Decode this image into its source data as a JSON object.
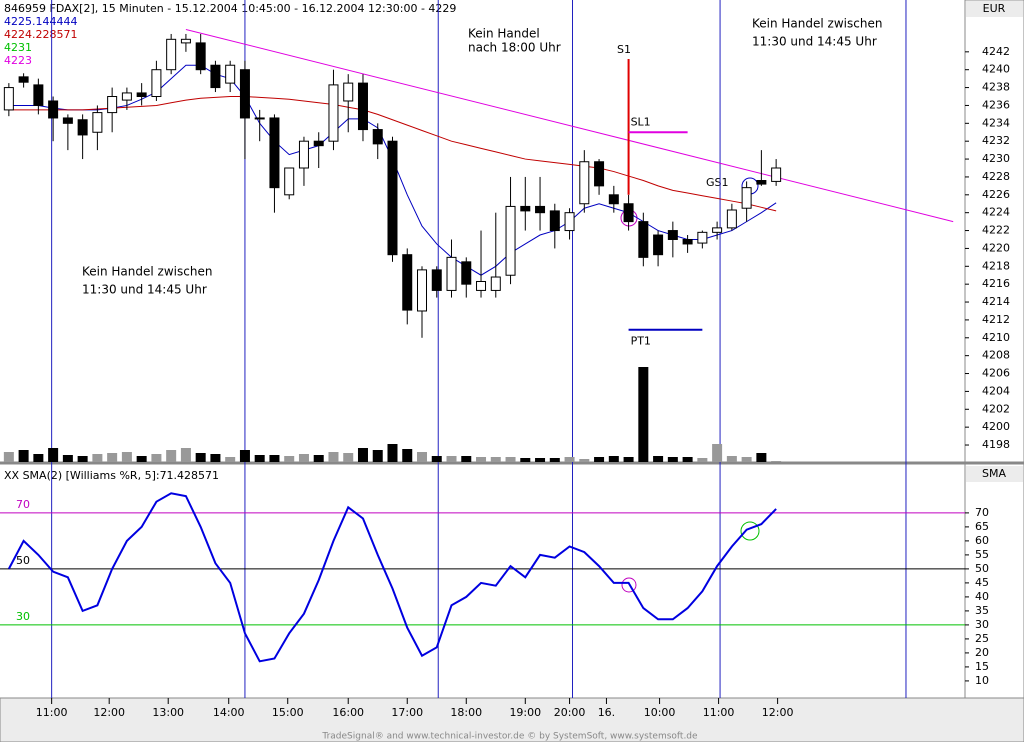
{
  "chart_data": [
    {
      "type": "candlestick",
      "title": "846959 FDAX[2], 15 Minuten - 15.12.2004 10:45:00 - 16.12.2004 12:30:00 - 4229",
      "axis_label": "EUR",
      "readouts": [
        {
          "value": 4225.144444,
          "color": "#0000c0"
        },
        {
          "value": 4224.228571,
          "color": "#c00000"
        },
        {
          "value": 4231,
          "color": "#00c000"
        },
        {
          "value": 4223,
          "color": "#e000e0"
        }
      ],
      "xlim": [
        -0.6,
        64.8
      ],
      "ylim": [
        4196.1,
        4247.8
      ],
      "yticks": [
        4198,
        4200,
        4202,
        4204,
        4206,
        4208,
        4210,
        4212,
        4214,
        4216,
        4218,
        4220,
        4222,
        4224,
        4226,
        4228,
        4230,
        4232,
        4234,
        4236,
        4238,
        4240,
        4242
      ],
      "open": [
        4235.5,
        4239.2,
        4238.3,
        4236.5,
        4234.6,
        4234.4,
        4233,
        4235.2,
        4236.6,
        4237.4,
        4237,
        4240,
        4243,
        4243,
        4240.5,
        4238.5,
        4240,
        4234.6,
        4234.6,
        4226,
        4229,
        4232,
        4232,
        4236.5,
        4238.5,
        4233.3,
        4232,
        4219.3,
        4213,
        4217.6,
        4215.3,
        4218.5,
        4215.3,
        4215.3,
        4217,
        4224.7,
        4224.7,
        4224.2,
        4222,
        4225,
        4229.7,
        4226,
        4225,
        4223,
        4221.5,
        4222,
        4221,
        4220.6,
        4221.8,
        4222.3,
        4224.5,
        4227.6,
        4227.5
      ],
      "high": [
        4238.5,
        4239.6,
        4239,
        4237,
        4235,
        4235,
        4236,
        4238,
        4238,
        4238.5,
        4241,
        4244,
        4244,
        4244,
        4241,
        4241,
        4241,
        4235.5,
        4235,
        4229,
        4232.5,
        4233,
        4240,
        4239.5,
        4239.5,
        4234,
        4232.5,
        4220,
        4218,
        4218,
        4221,
        4219,
        4222,
        4224,
        4228,
        4228,
        4228,
        4225,
        4224.5,
        4231,
        4230,
        4227,
        4226,
        4224,
        4222,
        4223,
        4221.5,
        4222,
        4223,
        4225,
        4227.5,
        4231,
        4230
      ],
      "low": [
        4234.8,
        4238,
        4235,
        4232,
        4231,
        4230,
        4231,
        4233,
        4235.5,
        4236,
        4236.5,
        4239.5,
        4242,
        4239.5,
        4237.5,
        4237.5,
        4230,
        4232,
        4224,
        4225.5,
        4227,
        4229,
        4231,
        4233,
        4232,
        4230,
        4218.5,
        4211.5,
        4210,
        4214.5,
        4214.5,
        4214.5,
        4214.5,
        4214.5,
        4216,
        4222,
        4222,
        4220,
        4221,
        4224,
        4226,
        4224,
        4222,
        4218,
        4218,
        4219,
        4219.5,
        4220,
        4221,
        4222,
        4223,
        4227,
        4227
      ],
      "close": [
        4238,
        4238.6,
        4236,
        4234.6,
        4234,
        4232.7,
        4235.2,
        4237,
        4237.4,
        4237,
        4240,
        4243.4,
        4243.4,
        4240,
        4238,
        4240.5,
        4234.6,
        4234.5,
        4226.8,
        4229,
        4232,
        4231.5,
        4238.3,
        4238.5,
        4233.3,
        4231.7,
        4219.3,
        4213.1,
        4217.6,
        4215.3,
        4219,
        4216,
        4216.3,
        4216.8,
        4224.7,
        4224.2,
        4224,
        4222,
        4224,
        4229.7,
        4227,
        4225,
        4223,
        4219,
        4219.3,
        4221,
        4220.5,
        4221.8,
        4222.3,
        4224.3,
        4226.8,
        4227.2,
        4229
      ],
      "volume": [
        10,
        12,
        8,
        14,
        7,
        6,
        8,
        9,
        10,
        6,
        8,
        12,
        14,
        9,
        8,
        5,
        12,
        7,
        7,
        6,
        8,
        7,
        10,
        9,
        14,
        12,
        18,
        13,
        10,
        6,
        6,
        6,
        5,
        5,
        5,
        4,
        4,
        4,
        5,
        3,
        5,
        6,
        5,
        95,
        6,
        5,
        5,
        4,
        18,
        6,
        5,
        9,
        1
      ],
      "series": [
        {
          "color": "#0000c0",
          "values": [
            4236,
            4236,
            4236,
            4235.7,
            4235.5,
            4235.5,
            4235.5,
            4235.7,
            4236,
            4236.7,
            4237.5,
            4239,
            4240.5,
            4240.5,
            4239.5,
            4239,
            4237,
            4234,
            4232,
            4230.5,
            4231,
            4231.5,
            4233,
            4234.5,
            4234.5,
            4233.5,
            4230,
            4226,
            4222.5,
            4220.5,
            4219,
            4218,
            4217,
            4218,
            4219.5,
            4220.5,
            4221.5,
            4222,
            4223,
            4224.5,
            4225,
            4224.5,
            4224,
            4223,
            4222,
            4221.5,
            4221,
            4221,
            4221.5,
            4222,
            4223,
            4224,
            4225.1
          ]
        },
        {
          "color": "#c00000",
          "values": [
            4235.5,
            4235.5,
            4235.5,
            4235.5,
            4235.5,
            4235.5,
            4235.6,
            4235.7,
            4235.8,
            4235.9,
            4236,
            4236.3,
            4236.6,
            4236.8,
            4236.9,
            4237,
            4237,
            4236.9,
            4236.8,
            4236.7,
            4236.5,
            4236.3,
            4236.1,
            4235.8,
            4235.5,
            4235,
            4234.4,
            4233.8,
            4233.2,
            4232.6,
            4232,
            4231.6,
            4231.2,
            4230.8,
            4230.4,
            4230,
            4229.8,
            4229.6,
            4229.4,
            4229.2,
            4229,
            4228.6,
            4228.1,
            4227.6,
            4227,
            4226.5,
            4226.2,
            4225.9,
            4225.6,
            4225.3,
            4225,
            4224.6,
            4224.2
          ]
        }
      ],
      "trendline": {
        "x": [
          12,
          64
        ],
        "y": [
          4244.5,
          4223
        ],
        "color": "#e000e0"
      },
      "vlines": [
        2.9,
        16,
        29.1,
        38.2,
        48.2,
        60.8
      ],
      "signal": {
        "label": "S1",
        "x": 42,
        "y": [
          4241.2,
          4226
        ],
        "color": "#e00000"
      },
      "levels": [
        {
          "label": "SL1",
          "value": 4233,
          "x": [
            42,
            46
          ],
          "color": "#e000e0"
        },
        {
          "label": "PT1",
          "value": 4210.9,
          "x": [
            42,
            47
          ],
          "color": "#0000c0"
        }
      ],
      "gs_label": "GS1",
      "annotations": [
        "Kein Handel",
        "nach 18:00 Uhr",
        "Kein Handel zwischen",
        "11:30 und 14:45 Uhr",
        "Kein Handel zwischen",
        "11:30 und 14:45 Uhr"
      ]
    },
    {
      "type": "line",
      "title": "XX SMA(2) [Williams %R, 5]:71.428571",
      "axis_label": "SMA",
      "color": "#0000e0",
      "xlim": [
        -0.6,
        64.8
      ],
      "ylim": [
        3.9,
        87.1
      ],
      "yticks": [
        10,
        15,
        20,
        25,
        30,
        35,
        40,
        45,
        50,
        55,
        60,
        65,
        70
      ],
      "hlines": [
        {
          "value": 70,
          "label": "70",
          "color": "#c000c0"
        },
        {
          "value": 50,
          "label": "50",
          "color": "#000000"
        },
        {
          "value": 30,
          "label": "30",
          "color": "#00c000"
        }
      ],
      "values": [
        50,
        60,
        55,
        49,
        47,
        35,
        37,
        50,
        60,
        65,
        74,
        77,
        76,
        65,
        52,
        45,
        27,
        17,
        18,
        27,
        34,
        46,
        60,
        72,
        68,
        55,
        43,
        29,
        19,
        22,
        37,
        40,
        45,
        44,
        51,
        47,
        55,
        54,
        58,
        56,
        51,
        45,
        45,
        36,
        32,
        32,
        36,
        42,
        51,
        58,
        64,
        66,
        71.4
      ],
      "xticks": [
        {
          "value": 2.9,
          "label": "11:00"
        },
        {
          "value": 6.8,
          "label": "12:00"
        },
        {
          "value": 10.8,
          "label": "13:00"
        },
        {
          "value": 14.9,
          "label": "14:00"
        },
        {
          "value": 18.9,
          "label": "15:00"
        },
        {
          "value": 23,
          "label": "16:00"
        },
        {
          "value": 27,
          "label": "17:00"
        },
        {
          "value": 31,
          "label": "18:00"
        },
        {
          "value": 35,
          "label": "19:00"
        },
        {
          "value": 38,
          "label": "20:00"
        },
        {
          "value": 40.5,
          "label": "16."
        },
        {
          "value": 44.1,
          "label": "10:00"
        },
        {
          "value": 48.1,
          "label": "11:00"
        },
        {
          "value": 52.1,
          "label": "12:00"
        }
      ]
    }
  ],
  "footer": "TradeSignal® and www.technical-investor.de © by SystemSoft, www.systemsoft.de"
}
